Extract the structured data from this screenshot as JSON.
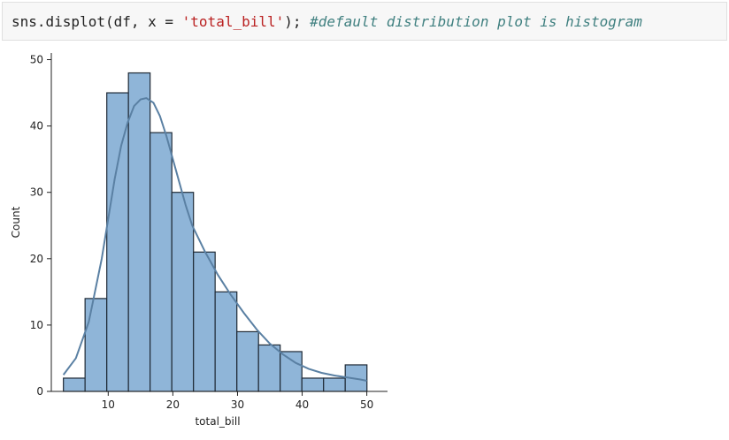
{
  "code_cell": {
    "code_part": "sns.displot(df, x = ",
    "string_part": "'total_bill'",
    "end_part": "); ",
    "comment_part": "#default distribution plot is histogram"
  },
  "chart_data": {
    "type": "bar",
    "subtype": "histogram-with-kde",
    "xlabel": "total_bill",
    "ylabel": "Count",
    "xlim": [
      1.2,
      53.2
    ],
    "ylim": [
      0,
      51
    ],
    "xticks": [
      10,
      20,
      30,
      40,
      50
    ],
    "yticks": [
      0,
      10,
      20,
      30,
      40,
      50
    ],
    "bin_edges": [
      3.07,
      6.42,
      9.78,
      13.13,
      16.48,
      19.84,
      23.19,
      26.54,
      29.9,
      33.25,
      36.6,
      39.96,
      43.31,
      46.66,
      50.02
    ],
    "counts": [
      2,
      14,
      45,
      48,
      39,
      30,
      21,
      15,
      9,
      7,
      6,
      2,
      2,
      4
    ],
    "kde": {
      "x": [
        3.07,
        5,
        7,
        9,
        10,
        11,
        12,
        13,
        14,
        15,
        15.9,
        17,
        18,
        19,
        20,
        21,
        22,
        23,
        25,
        27,
        29,
        31,
        33,
        35,
        37,
        39,
        41,
        43,
        45,
        47,
        49,
        50.02
      ],
      "y": [
        2.5,
        5,
        10.5,
        20,
        26,
        32,
        37,
        40.5,
        43,
        44,
        44.2,
        43.5,
        41.5,
        38.5,
        35,
        31.5,
        28,
        25,
        21,
        17.5,
        14.5,
        11.8,
        9.3,
        7.2,
        5.6,
        4.3,
        3.4,
        2.8,
        2.4,
        2.1,
        1.8,
        1.6
      ]
    },
    "colors": {
      "bar_fill": "#8fb5d8",
      "bar_edge": "#1f2a36",
      "kde_line": "#5a80a3",
      "axis": "#222222"
    }
  }
}
